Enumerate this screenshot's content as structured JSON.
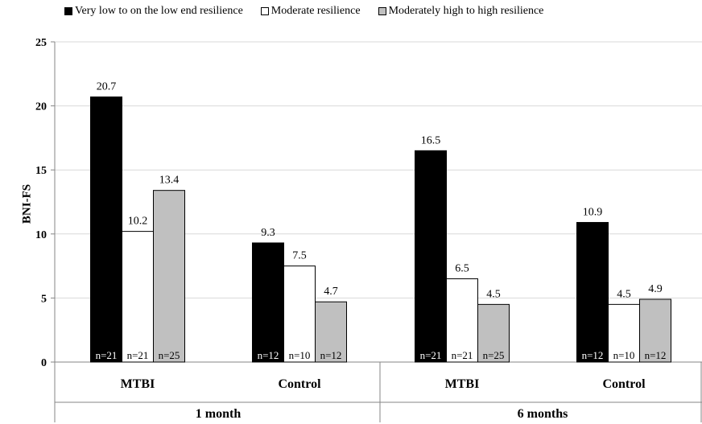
{
  "chart_data": {
    "type": "bar",
    "ylabel": "BNI-FS",
    "ylim": [
      0,
      25
    ],
    "yticks": [
      "0",
      "5",
      "10",
      "15",
      "20",
      "25"
    ],
    "grid": true,
    "legend_position": "top",
    "series": [
      {
        "name": "Very low to on the low end resilience",
        "color": "#000000"
      },
      {
        "name": "Moderate resilience",
        "color": "#ffffff"
      },
      {
        "name": "Moderately high to high resilience",
        "color": "#c0c0c0"
      }
    ],
    "groups": [
      {
        "label": "MTBI",
        "time": "1 month",
        "values": [
          20.7,
          10.2,
          13.4
        ],
        "value_labels": [
          "20.7",
          "10.2",
          "13.4"
        ],
        "n": [
          "n=21",
          "n=21",
          "n=25"
        ]
      },
      {
        "label": "Control",
        "time": "1 month",
        "values": [
          9.3,
          7.5,
          4.7
        ],
        "value_labels": [
          "9.3",
          "7.5",
          "4.7"
        ],
        "n": [
          "n=12",
          "n=10",
          "n=12"
        ]
      },
      {
        "label": "MTBI",
        "time": "6 months",
        "values": [
          16.5,
          6.5,
          4.5
        ],
        "value_labels": [
          "16.5",
          "6.5",
          "4.5"
        ],
        "n": [
          "n=21",
          "n=21",
          "n=25"
        ]
      },
      {
        "label": "Control",
        "time": "6 months",
        "values": [
          10.9,
          4.5,
          4.9
        ],
        "value_labels": [
          "10.9",
          "4.5",
          "4.9"
        ],
        "n": [
          "n=12",
          "n=10",
          "n=12"
        ]
      }
    ],
    "time_labels": [
      "1 month",
      "6 months"
    ]
  }
}
